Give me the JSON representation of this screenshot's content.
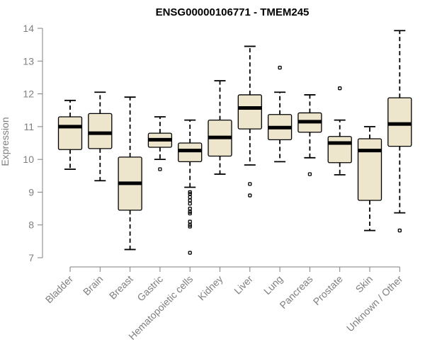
{
  "chart_data": {
    "type": "boxplot",
    "title": "ENSG00000106771 - TMEM245",
    "xlabel": "",
    "ylabel": "Expression",
    "ylim": [
      7,
      14
    ],
    "yticks": [
      7,
      8,
      9,
      10,
      11,
      12,
      13,
      14
    ],
    "box_color": "#ede6cd",
    "categories": [
      "Bladder",
      "Brain",
      "Breast",
      "Gastric",
      "Hematopoietic cells",
      "Kidney",
      "Liver",
      "Lung",
      "Pancreas",
      "Prostate",
      "Skin",
      "Unknown / Other"
    ],
    "boxes": [
      {
        "name": "Bladder",
        "whisker_low": 9.7,
        "q1": 10.3,
        "median": 11.0,
        "q3": 11.3,
        "whisker_high": 11.8,
        "outliers": []
      },
      {
        "name": "Brain",
        "whisker_low": 9.35,
        "q1": 10.33,
        "median": 10.8,
        "q3": 11.4,
        "whisker_high": 12.05,
        "outliers": []
      },
      {
        "name": "Breast",
        "whisker_low": 7.25,
        "q1": 8.45,
        "median": 9.27,
        "q3": 10.07,
        "whisker_high": 11.9,
        "outliers": []
      },
      {
        "name": "Gastric",
        "whisker_low": 10.0,
        "q1": 10.37,
        "median": 10.6,
        "q3": 10.8,
        "whisker_high": 11.3,
        "outliers": [
          9.7
        ]
      },
      {
        "name": "Hematopoietic cells",
        "whisker_low": 9.15,
        "q1": 9.93,
        "median": 10.27,
        "q3": 10.5,
        "whisker_high": 11.2,
        "outliers": [
          9.0,
          8.95,
          8.85,
          8.75,
          8.65,
          8.5,
          8.4,
          8.35,
          8.1,
          8.0,
          7.95,
          7.15
        ]
      },
      {
        "name": "Kidney",
        "whisker_low": 9.55,
        "q1": 10.1,
        "median": 10.67,
        "q3": 11.2,
        "whisker_high": 12.4,
        "outliers": []
      },
      {
        "name": "Liver",
        "whisker_low": 9.83,
        "q1": 10.93,
        "median": 11.57,
        "q3": 11.97,
        "whisker_high": 13.45,
        "outliers": [
          9.25,
          8.9
        ]
      },
      {
        "name": "Lung",
        "whisker_low": 9.93,
        "q1": 10.6,
        "median": 10.97,
        "q3": 11.37,
        "whisker_high": 12.05,
        "outliers": [
          12.8
        ]
      },
      {
        "name": "Pancreas",
        "whisker_low": 10.05,
        "q1": 10.83,
        "median": 11.15,
        "q3": 11.42,
        "whisker_high": 11.97,
        "outliers": [
          9.55
        ]
      },
      {
        "name": "Prostate",
        "whisker_low": 9.53,
        "q1": 9.9,
        "median": 10.5,
        "q3": 10.7,
        "whisker_high": 11.2,
        "outliers": [
          12.17
        ]
      },
      {
        "name": "Skin",
        "whisker_low": 7.83,
        "q1": 8.75,
        "median": 10.27,
        "q3": 10.63,
        "whisker_high": 11.0,
        "outliers": []
      },
      {
        "name": "Unknown / Other",
        "whisker_low": 8.37,
        "q1": 10.4,
        "median": 11.08,
        "q3": 11.88,
        "whisker_high": 13.93,
        "outliers": [
          7.83
        ]
      }
    ]
  }
}
